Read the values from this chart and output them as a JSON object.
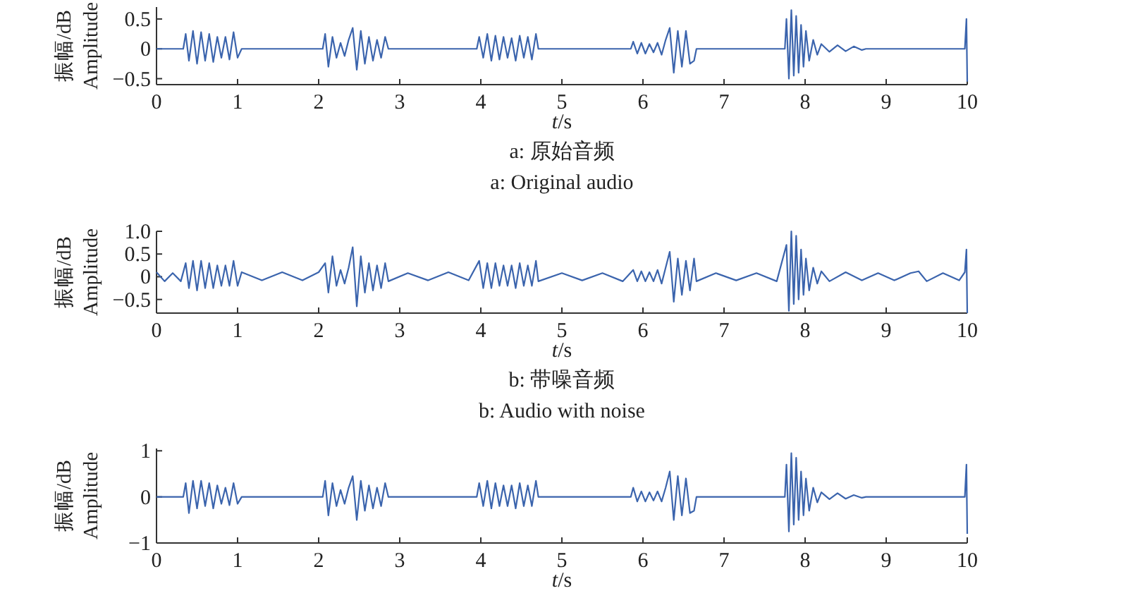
{
  "chart_data": [
    {
      "type": "line",
      "ylabel": "振幅/dB Amplitude",
      "xlabel": "*t*/s",
      "annotations": [
        "a: 原始音频",
        "a: Original audio"
      ],
      "color": "#3b64ad",
      "xlim": [
        0,
        10
      ],
      "ylim": [
        -0.6,
        0.7
      ],
      "xticks": [
        0,
        1,
        2,
        3,
        4,
        5,
        6,
        7,
        8,
        9,
        10
      ],
      "yticks": [
        -0.5,
        0,
        0.5
      ],
      "x": [
        0,
        0.33,
        0.36,
        0.4,
        0.45,
        0.5,
        0.55,
        0.6,
        0.65,
        0.7,
        0.75,
        0.8,
        0.85,
        0.9,
        0.95,
        1.0,
        1.05,
        2.05,
        2.08,
        2.12,
        2.17,
        2.22,
        2.27,
        2.32,
        2.37,
        2.42,
        2.47,
        2.52,
        2.57,
        2.62,
        2.67,
        2.72,
        2.77,
        2.82,
        2.86,
        3.95,
        3.98,
        4.03,
        4.08,
        4.13,
        4.18,
        4.23,
        4.28,
        4.33,
        4.38,
        4.43,
        4.48,
        4.53,
        4.58,
        4.63,
        4.68,
        4.71,
        5.85,
        5.88,
        5.93,
        5.98,
        6.03,
        6.08,
        6.13,
        6.18,
        6.23,
        6.28,
        6.33,
        6.38,
        6.43,
        6.48,
        6.53,
        6.58,
        6.63,
        6.66,
        7.75,
        7.77,
        7.8,
        7.83,
        7.86,
        7.89,
        7.92,
        7.95,
        7.98,
        8.01,
        8.05,
        8.1,
        8.15,
        8.2,
        8.3,
        8.4,
        8.5,
        8.6,
        8.7,
        8.75,
        9.97,
        9.99,
        10.0
      ],
      "values": [
        0,
        0,
        0.25,
        -0.2,
        0.3,
        -0.25,
        0.28,
        -0.2,
        0.25,
        -0.22,
        0.2,
        -0.15,
        0.2,
        -0.18,
        0.28,
        -0.15,
        0,
        0,
        0.25,
        -0.3,
        0.2,
        -0.15,
        0.1,
        -0.12,
        0.15,
        0.35,
        -0.35,
        0.3,
        -0.25,
        0.2,
        -0.2,
        0.15,
        -0.15,
        0.2,
        0,
        0,
        0.2,
        -0.15,
        0.25,
        -0.2,
        0.22,
        -0.18,
        0.2,
        -0.15,
        0.18,
        -0.2,
        0.22,
        -0.15,
        0.2,
        -0.18,
        0.25,
        0,
        0,
        0.12,
        -0.08,
        0.1,
        -0.08,
        0.08,
        -0.06,
        0.1,
        -0.1,
        0.15,
        0.35,
        -0.4,
        0.3,
        -0.3,
        0.3,
        -0.25,
        -0.2,
        0,
        0,
        0.5,
        -0.5,
        0.65,
        -0.45,
        0.55,
        -0.4,
        0.4,
        -0.3,
        0.3,
        -0.2,
        0.15,
        -0.1,
        0.08,
        -0.05,
        0.06,
        -0.04,
        0.04,
        -0.02,
        0,
        0,
        0.5,
        -0.55
      ]
    },
    {
      "type": "line",
      "ylabel": "振幅/dB Amplitude",
      "xlabel": "*t*/s",
      "annotations": [
        "b: 带噪音频",
        "b: Audio with noise"
      ],
      "color": "#3b64ad",
      "xlim": [
        0,
        10
      ],
      "ylim": [
        -0.8,
        1.0
      ],
      "xticks": [
        0,
        1,
        2,
        3,
        4,
        5,
        6,
        7,
        8,
        9,
        10
      ],
      "yticks": [
        -0.5,
        0,
        0.5,
        {
          "value": 1,
          "label": "1.0"
        }
      ],
      "x": [
        0,
        0.1,
        0.2,
        0.3,
        0.36,
        0.4,
        0.45,
        0.5,
        0.55,
        0.6,
        0.65,
        0.7,
        0.75,
        0.8,
        0.85,
        0.9,
        0.95,
        1.0,
        1.05,
        1.3,
        1.55,
        1.8,
        2.0,
        2.08,
        2.12,
        2.17,
        2.22,
        2.27,
        2.32,
        2.37,
        2.42,
        2.47,
        2.52,
        2.57,
        2.62,
        2.67,
        2.72,
        2.77,
        2.82,
        2.86,
        3.1,
        3.35,
        3.6,
        3.85,
        3.98,
        4.03,
        4.08,
        4.13,
        4.18,
        4.23,
        4.28,
        4.33,
        4.38,
        4.43,
        4.48,
        4.53,
        4.58,
        4.63,
        4.68,
        4.71,
        5.0,
        5.25,
        5.5,
        5.75,
        5.88,
        5.93,
        5.98,
        6.03,
        6.08,
        6.13,
        6.18,
        6.23,
        6.28,
        6.33,
        6.38,
        6.43,
        6.48,
        6.53,
        6.58,
        6.63,
        6.66,
        6.9,
        7.15,
        7.4,
        7.65,
        7.77,
        7.8,
        7.83,
        7.86,
        7.89,
        7.92,
        7.95,
        7.98,
        8.01,
        8.05,
        8.1,
        8.15,
        8.2,
        8.3,
        8.5,
        8.7,
        8.9,
        9.1,
        9.3,
        9.4,
        9.5,
        9.7,
        9.9,
        9.97,
        9.99,
        10.0
      ],
      "values": [
        0.1,
        -0.1,
        0.08,
        -0.1,
        0.3,
        -0.25,
        0.35,
        -0.3,
        0.35,
        -0.25,
        0.3,
        -0.25,
        0.25,
        -0.2,
        0.25,
        -0.2,
        0.35,
        -0.2,
        0.1,
        -0.08,
        0.1,
        -0.08,
        0.1,
        0.3,
        -0.35,
        0.45,
        -0.2,
        0.15,
        -0.15,
        0.2,
        0.65,
        -0.65,
        0.45,
        -0.35,
        0.3,
        -0.3,
        0.25,
        -0.25,
        0.3,
        -0.1,
        0.08,
        -0.08,
        0.1,
        -0.08,
        0.35,
        -0.25,
        0.3,
        -0.25,
        0.3,
        -0.2,
        0.25,
        -0.2,
        0.25,
        -0.25,
        0.3,
        -0.2,
        0.25,
        -0.2,
        0.35,
        -0.1,
        0.08,
        -0.08,
        0.08,
        -0.1,
        0.15,
        -0.1,
        0.12,
        -0.1,
        0.1,
        -0.1,
        0.15,
        -0.15,
        0.2,
        0.55,
        -0.55,
        0.4,
        -0.4,
        0.35,
        -0.3,
        0.4,
        -0.1,
        0.08,
        -0.08,
        0.08,
        -0.1,
        0.7,
        -0.75,
        1.0,
        -0.6,
        0.9,
        -0.5,
        0.6,
        -0.4,
        0.4,
        -0.3,
        0.2,
        -0.15,
        0.12,
        -0.1,
        0.1,
        -0.08,
        0.08,
        -0.08,
        0.08,
        0.12,
        -0.1,
        0.08,
        -0.08,
        0.1,
        0.6,
        -0.8
      ]
    },
    {
      "type": "line",
      "ylabel": "振幅/dB Amplitude",
      "xlabel": "*t*/s",
      "color": "#3b64ad",
      "xlim": [
        0,
        10
      ],
      "ylim": [
        -1,
        1.05
      ],
      "xticks": [
        0,
        1,
        2,
        3,
        4,
        5,
        6,
        7,
        8,
        9,
        10
      ],
      "yticks": [
        -1,
        0,
        1
      ],
      "x": [
        0,
        0.33,
        0.36,
        0.4,
        0.45,
        0.5,
        0.55,
        0.6,
        0.65,
        0.7,
        0.75,
        0.8,
        0.85,
        0.9,
        0.95,
        1.0,
        1.05,
        2.05,
        2.08,
        2.12,
        2.17,
        2.22,
        2.27,
        2.32,
        2.37,
        2.42,
        2.47,
        2.52,
        2.57,
        2.62,
        2.67,
        2.72,
        2.77,
        2.82,
        2.86,
        3.95,
        3.98,
        4.03,
        4.08,
        4.13,
        4.18,
        4.23,
        4.28,
        4.33,
        4.38,
        4.43,
        4.48,
        4.53,
        4.58,
        4.63,
        4.68,
        4.71,
        5.85,
        5.88,
        5.93,
        5.98,
        6.03,
        6.08,
        6.13,
        6.18,
        6.23,
        6.28,
        6.33,
        6.38,
        6.43,
        6.48,
        6.53,
        6.58,
        6.63,
        6.66,
        7.75,
        7.77,
        7.8,
        7.83,
        7.86,
        7.89,
        7.92,
        7.95,
        7.98,
        8.01,
        8.05,
        8.1,
        8.15,
        8.2,
        8.3,
        8.4,
        8.5,
        8.6,
        8.7,
        8.75,
        9.97,
        9.99,
        10.0
      ],
      "values": [
        0,
        0,
        0.3,
        -0.35,
        0.35,
        -0.25,
        0.35,
        -0.2,
        0.3,
        -0.25,
        0.25,
        -0.15,
        0.2,
        -0.18,
        0.3,
        -0.15,
        0,
        0,
        0.35,
        -0.4,
        0.3,
        -0.2,
        0.15,
        -0.15,
        0.2,
        0.45,
        -0.5,
        0.35,
        -0.3,
        0.25,
        -0.25,
        0.2,
        -0.2,
        0.3,
        0,
        0,
        0.3,
        -0.2,
        0.35,
        -0.25,
        0.3,
        -0.2,
        0.25,
        -0.2,
        0.25,
        -0.25,
        0.3,
        -0.2,
        0.25,
        -0.2,
        0.35,
        0,
        0,
        0.2,
        -0.1,
        0.12,
        -0.1,
        0.1,
        -0.08,
        0.12,
        -0.1,
        0.2,
        0.55,
        -0.5,
        0.45,
        -0.4,
        0.4,
        -0.35,
        -0.3,
        0,
        0,
        0.7,
        -0.75,
        0.95,
        -0.6,
        0.85,
        -0.5,
        0.55,
        -0.4,
        0.4,
        -0.3,
        0.2,
        -0.12,
        0.1,
        -0.05,
        0.08,
        -0.04,
        0.04,
        -0.02,
        0,
        0,
        0.7,
        -0.8
      ]
    }
  ]
}
